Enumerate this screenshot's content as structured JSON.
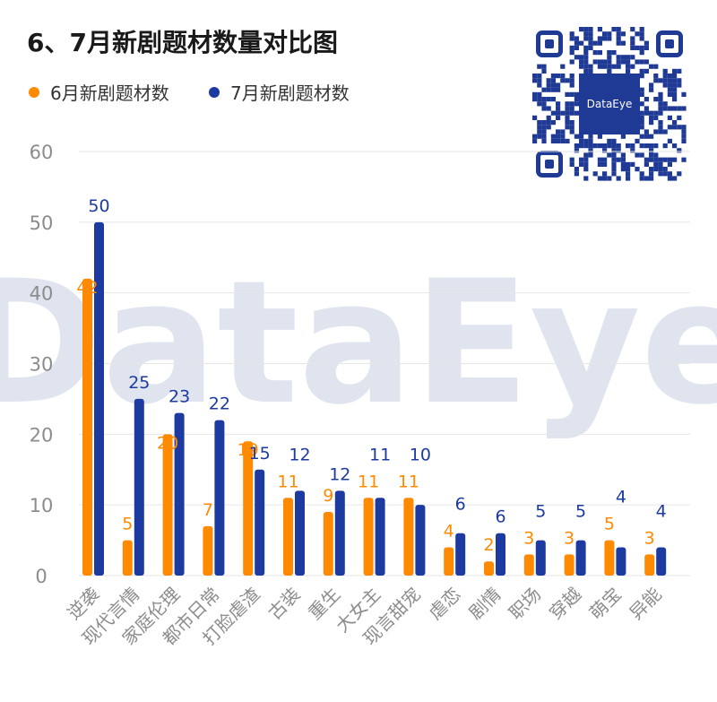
{
  "chart_data": {
    "type": "bar",
    "title": "6、7月新剧题材数量对比图",
    "categories": [
      "逆袭",
      "现代言情",
      "家庭伦理",
      "都市日常",
      "打脸虐渣",
      "古装",
      "重生",
      "大女主",
      "现言甜宠",
      "虐恋",
      "剧情",
      "职场",
      "穿越",
      "萌宝",
      "异能"
    ],
    "series": [
      {
        "name": "6月新剧题材数",
        "color": "#ff8a00",
        "values": [
          42,
          5,
          20,
          7,
          19,
          11,
          9,
          11,
          11,
          4,
          2,
          3,
          3,
          5,
          3
        ]
      },
      {
        "name": "7月新剧题材数",
        "color": "#1c3aa0",
        "values": [
          50,
          25,
          23,
          22,
          15,
          12,
          12,
          11,
          10,
          6,
          6,
          5,
          5,
          4,
          4
        ]
      }
    ],
    "ylim": [
      0,
      60
    ],
    "yticks": [
      0,
      10,
      20,
      30,
      40,
      50,
      60
    ],
    "grid": true,
    "legend": "top-left",
    "xlabel": "",
    "ylabel": ""
  },
  "watermark_text": "DataEye",
  "qr_logo_text": "DataEye"
}
